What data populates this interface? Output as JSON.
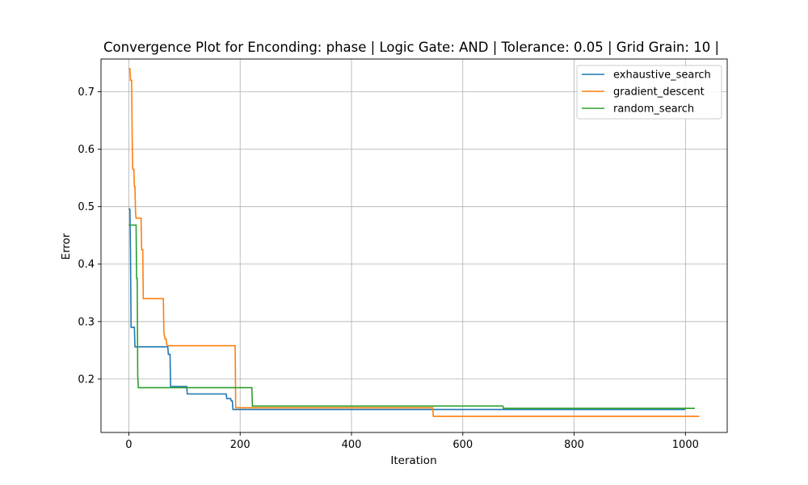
{
  "chart_data": {
    "type": "line",
    "title": "Convergence Plot for Enconding: phase | Logic Gate: AND | Tolerance: 0.05 | Grid Grain: 10 |",
    "xlabel": "Iteration",
    "ylabel": "Error",
    "xlim": [
      -50,
      1075
    ],
    "ylim": [
      0.107,
      0.757
    ],
    "xticks": [
      0,
      200,
      400,
      600,
      800,
      1000
    ],
    "yticks": [
      0.2,
      0.3,
      0.4,
      0.5,
      0.6,
      0.7
    ],
    "grid": true,
    "legend_position": "top-right",
    "series": [
      {
        "name": "exhaustive_search",
        "color": "#1f77b4",
        "step_points": [
          [
            0,
            0.497
          ],
          [
            2,
            0.495
          ],
          [
            3,
            0.42
          ],
          [
            4,
            0.29
          ],
          [
            10,
            0.29
          ],
          [
            11,
            0.256
          ],
          [
            70,
            0.256
          ],
          [
            71,
            0.243
          ],
          [
            74,
            0.243
          ],
          [
            75,
            0.187
          ],
          [
            104,
            0.187
          ],
          [
            105,
            0.174
          ],
          [
            175,
            0.174
          ],
          [
            176,
            0.166
          ],
          [
            183,
            0.166
          ],
          [
            184,
            0.162
          ],
          [
            186,
            0.162
          ],
          [
            187,
            0.147
          ],
          [
            1000,
            0.147
          ]
        ]
      },
      {
        "name": "gradient_descent",
        "color": "#ff7f0e",
        "step_points": [
          [
            0,
            0.74
          ],
          [
            2,
            0.74
          ],
          [
            3,
            0.72
          ],
          [
            5,
            0.72
          ],
          [
            6,
            0.62
          ],
          [
            7,
            0.565
          ],
          [
            9,
            0.565
          ],
          [
            10,
            0.535
          ],
          [
            11,
            0.535
          ],
          [
            12,
            0.49
          ],
          [
            13,
            0.48
          ],
          [
            22,
            0.48
          ],
          [
            23,
            0.425
          ],
          [
            25,
            0.425
          ],
          [
            26,
            0.34
          ],
          [
            62,
            0.34
          ],
          [
            63,
            0.28
          ],
          [
            65,
            0.27
          ],
          [
            67,
            0.27
          ],
          [
            68,
            0.26
          ],
          [
            70,
            0.258
          ],
          [
            191,
            0.258
          ],
          [
            192,
            0.15
          ],
          [
            546,
            0.15
          ],
          [
            547,
            0.135
          ],
          [
            1025,
            0.135
          ]
        ]
      },
      {
        "name": "random_search",
        "color": "#2ca02c",
        "step_points": [
          [
            0,
            0.468
          ],
          [
            13,
            0.468
          ],
          [
            14,
            0.375
          ],
          [
            15,
            0.375
          ],
          [
            16,
            0.205
          ],
          [
            17,
            0.185
          ],
          [
            221,
            0.185
          ],
          [
            222,
            0.153
          ],
          [
            672,
            0.153
          ],
          [
            673,
            0.149
          ],
          [
            1017,
            0.149
          ]
        ]
      }
    ]
  }
}
